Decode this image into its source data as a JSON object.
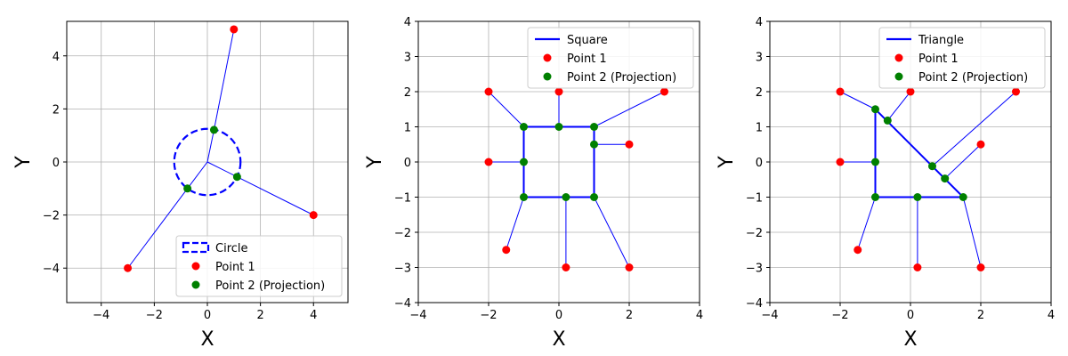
{
  "chart_data": [
    {
      "type": "scatter",
      "shape": "circle",
      "xlabel": "X",
      "ylabel": "Y",
      "xlim": [
        -5.3,
        5.3
      ],
      "ylim": [
        -5.3,
        5.3
      ],
      "xticks": [
        -4,
        -2,
        0,
        2,
        4
      ],
      "yticks": [
        -4,
        -2,
        0,
        2,
        4
      ],
      "grid": true,
      "legend_position": "lower-right",
      "legend": [
        "Circle",
        "Point 1",
        "Point 2 (Projection)"
      ],
      "circle": {
        "center": [
          0,
          0
        ],
        "radius": 1.25
      },
      "points1": [
        [
          1,
          5
        ],
        [
          4,
          -2
        ],
        [
          -3,
          -4
        ]
      ],
      "points2": [
        [
          0.25,
          1.21
        ],
        [
          1.12,
          -0.56
        ],
        [
          -0.75,
          -1.0
        ]
      ],
      "colors": {
        "shape": "#0000ff",
        "point1": "#ff0000",
        "point2": "#008000"
      }
    },
    {
      "type": "scatter",
      "shape": "polygon",
      "xlabel": "X",
      "ylabel": "Y",
      "xlim": [
        -4,
        4
      ],
      "ylim": [
        -4,
        4
      ],
      "xticks": [
        -4,
        -2,
        0,
        2,
        4
      ],
      "yticks": [
        -4,
        -3,
        -2,
        -1,
        0,
        1,
        2,
        3,
        4
      ],
      "grid": true,
      "legend_position": "upper-right",
      "legend": [
        "Square",
        "Point 1",
        "Point 2 (Projection)"
      ],
      "polygon": [
        [
          -1,
          -1
        ],
        [
          1,
          -1
        ],
        [
          1,
          1
        ],
        [
          -1,
          1
        ]
      ],
      "points1": [
        [
          -2,
          2
        ],
        [
          0,
          2
        ],
        [
          3,
          2
        ],
        [
          -2,
          0
        ],
        [
          2,
          0.5
        ],
        [
          -1.5,
          -2.5
        ],
        [
          0.2,
          -3
        ],
        [
          2,
          -3
        ]
      ],
      "points2": [
        [
          -1,
          1
        ],
        [
          0,
          1
        ],
        [
          1,
          1
        ],
        [
          -1,
          0
        ],
        [
          1,
          0.5
        ],
        [
          -1,
          -1
        ],
        [
          0.2,
          -1
        ],
        [
          1,
          -1
        ]
      ],
      "colors": {
        "shape": "#0000ff",
        "point1": "#ff0000",
        "point2": "#008000"
      }
    },
    {
      "type": "scatter",
      "shape": "polygon",
      "xlabel": "X",
      "ylabel": "Y",
      "xlim": [
        -4,
        4
      ],
      "ylim": [
        -4,
        4
      ],
      "xticks": [
        -4,
        -2,
        0,
        2,
        4
      ],
      "yticks": [
        -4,
        -3,
        -2,
        -1,
        0,
        1,
        2,
        3,
        4
      ],
      "grid": true,
      "legend_position": "upper-right",
      "legend": [
        "Triangle",
        "Point 1",
        "Point 2 (Projection)"
      ],
      "polygon": [
        [
          -1,
          -1
        ],
        [
          1.5,
          -1
        ],
        [
          -1,
          1.5
        ]
      ],
      "points1": [
        [
          -2,
          2
        ],
        [
          0,
          2
        ],
        [
          3,
          2
        ],
        [
          -2,
          0
        ],
        [
          2,
          0.5
        ],
        [
          -1.5,
          -2.5
        ],
        [
          0.2,
          -3
        ],
        [
          2,
          -3
        ]
      ],
      "points2": [
        [
          -1,
          1.5
        ],
        [
          -0.65,
          1.18
        ],
        [
          0.62,
          -0.12
        ],
        [
          -1,
          0
        ],
        [
          0.98,
          -0.47
        ],
        [
          -1,
          -1
        ],
        [
          0.2,
          -1
        ],
        [
          1.5,
          -1
        ]
      ],
      "colors": {
        "shape": "#0000ff",
        "point1": "#ff0000",
        "point2": "#008000"
      }
    }
  ]
}
